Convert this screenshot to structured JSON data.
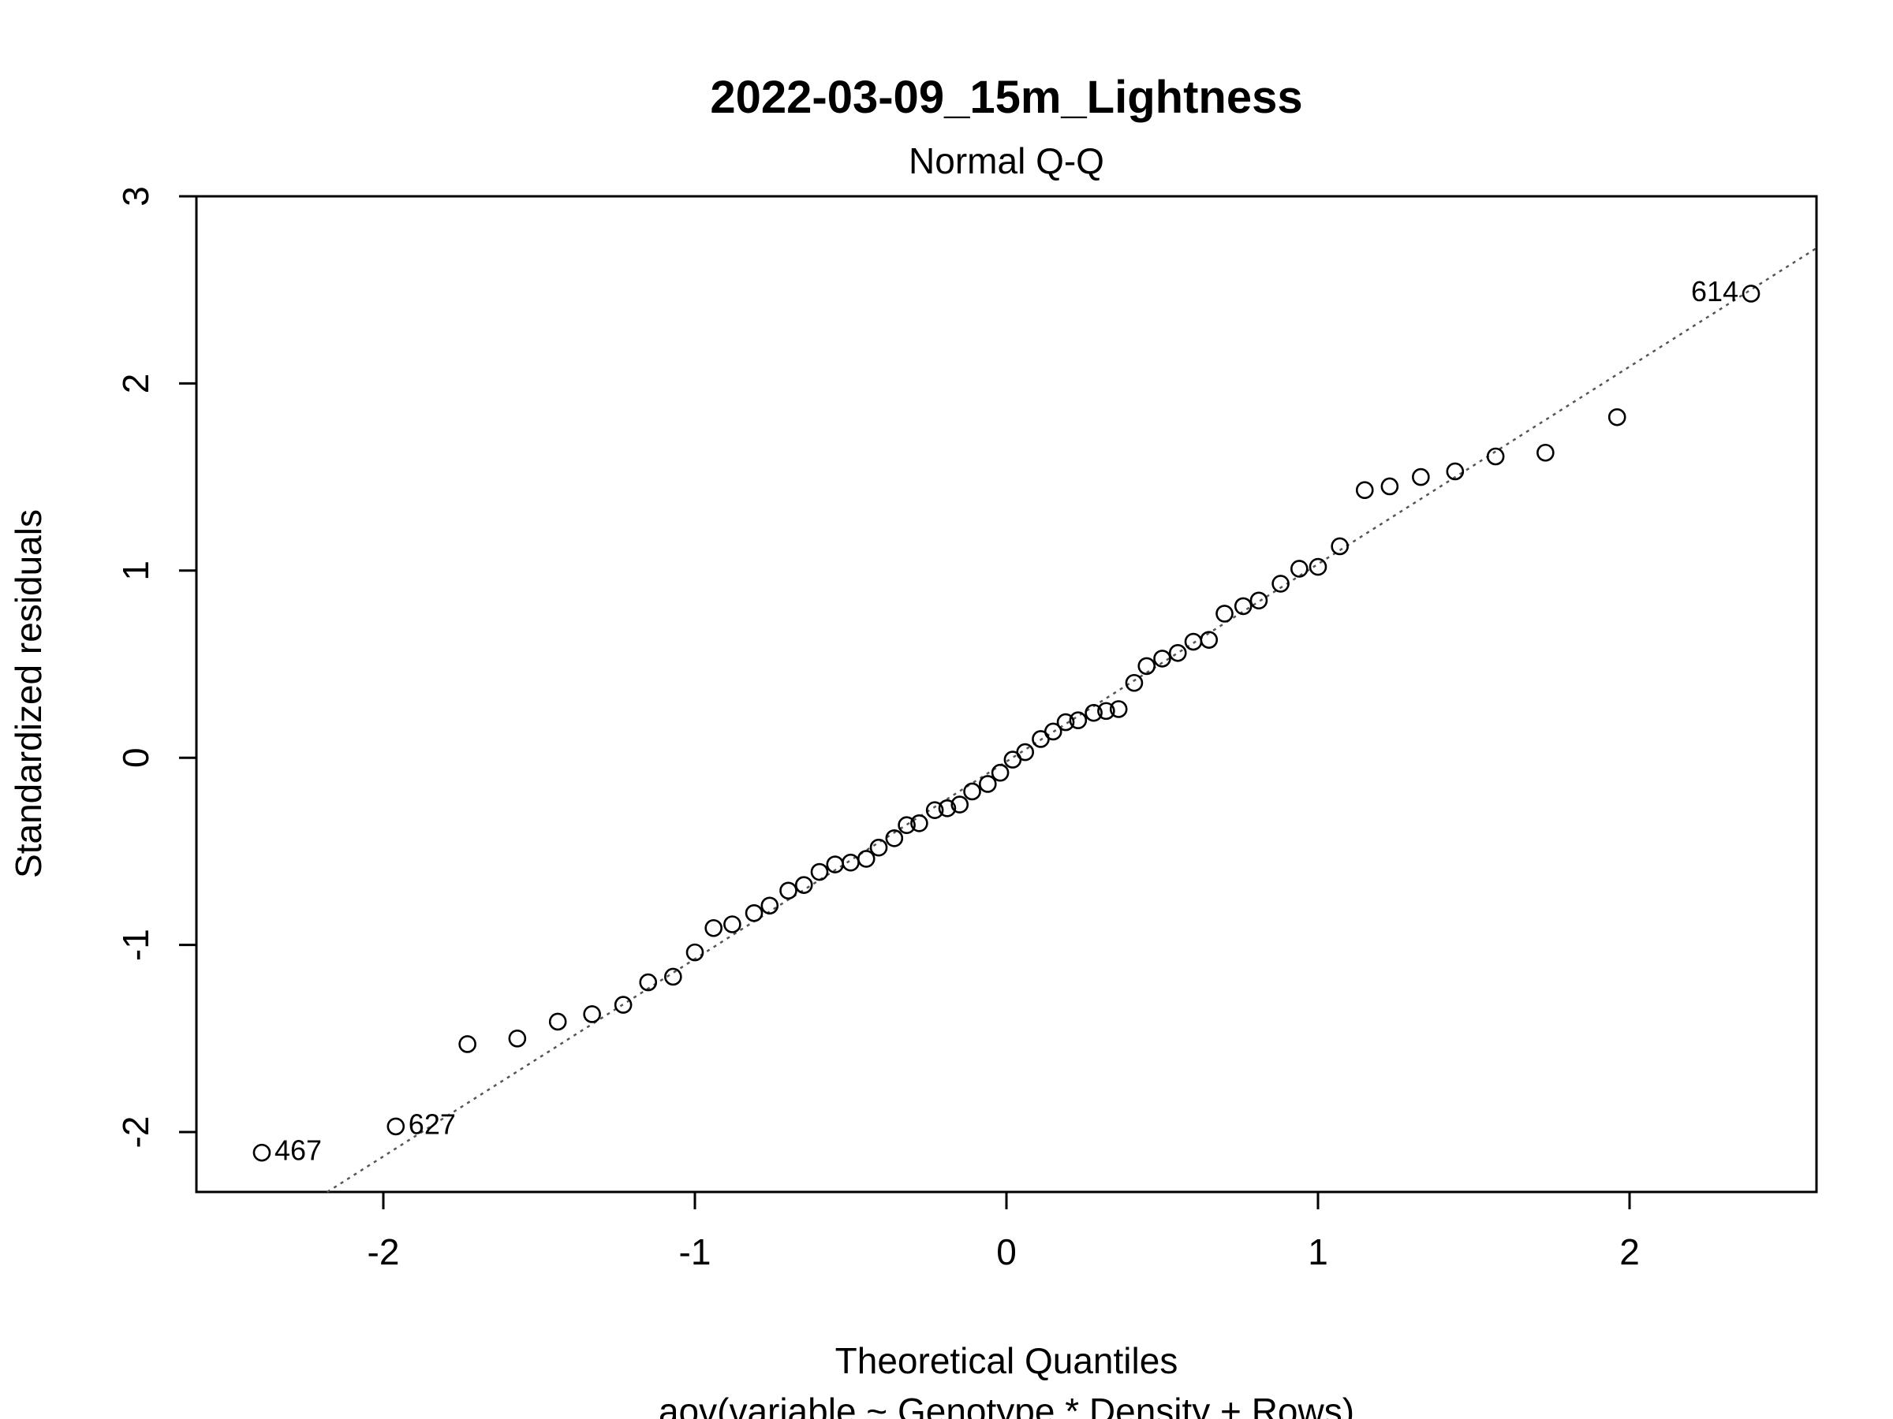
{
  "chart_data": {
    "type": "scatter",
    "title": "2022-03-09_15m_Lightness",
    "subtitle": "Normal Q-Q",
    "xlabel": "Theoretical Quantiles",
    "xlabel2": "aov(variable ~ Genotype * Density + Rows)",
    "ylabel": "Standardized residuals",
    "xlim": [
      -2.6,
      2.6
    ],
    "ylim": [
      -2.32,
      3.0
    ],
    "xticks": [
      -2,
      -1,
      0,
      1,
      2
    ],
    "xtick_labels": [
      "-2",
      "-1",
      "0",
      "1",
      "2"
    ],
    "yticks": [
      -2,
      -1,
      0,
      1,
      2,
      3
    ],
    "ytick_labels": [
      "-2",
      "-1",
      "0",
      "1",
      "2",
      "3"
    ],
    "grid": false,
    "reference_line": {
      "slope": 1.055,
      "intercept": -0.02,
      "style": "dotted",
      "color": "#555555"
    },
    "points": [
      [
        -2.39,
        -2.11
      ],
      [
        -1.96,
        -1.97
      ],
      [
        -1.73,
        -1.53
      ],
      [
        -1.57,
        -1.5
      ],
      [
        -1.44,
        -1.41
      ],
      [
        -1.33,
        -1.37
      ],
      [
        -1.23,
        -1.32
      ],
      [
        -1.15,
        -1.2
      ],
      [
        -1.07,
        -1.17
      ],
      [
        -1.0,
        -1.04
      ],
      [
        -0.94,
        -0.91
      ],
      [
        -0.88,
        -0.89
      ],
      [
        -0.81,
        -0.83
      ],
      [
        -0.76,
        -0.79
      ],
      [
        -0.7,
        -0.71
      ],
      [
        -0.65,
        -0.68
      ],
      [
        -0.6,
        -0.61
      ],
      [
        -0.55,
        -0.57
      ],
      [
        -0.5,
        -0.56
      ],
      [
        -0.45,
        -0.54
      ],
      [
        -0.41,
        -0.48
      ],
      [
        -0.36,
        -0.43
      ],
      [
        -0.32,
        -0.36
      ],
      [
        -0.28,
        -0.35
      ],
      [
        -0.23,
        -0.28
      ],
      [
        -0.19,
        -0.27
      ],
      [
        -0.15,
        -0.25
      ],
      [
        -0.11,
        -0.18
      ],
      [
        -0.06,
        -0.14
      ],
      [
        -0.02,
        -0.08
      ],
      [
        0.02,
        -0.01
      ],
      [
        0.06,
        0.03
      ],
      [
        0.11,
        0.1
      ],
      [
        0.15,
        0.14
      ],
      [
        0.19,
        0.19
      ],
      [
        0.23,
        0.2
      ],
      [
        0.28,
        0.24
      ],
      [
        0.32,
        0.25
      ],
      [
        0.36,
        0.26
      ],
      [
        0.41,
        0.4
      ],
      [
        0.45,
        0.49
      ],
      [
        0.5,
        0.53
      ],
      [
        0.55,
        0.56
      ],
      [
        0.6,
        0.62
      ],
      [
        0.65,
        0.63
      ],
      [
        0.7,
        0.77
      ],
      [
        0.76,
        0.81
      ],
      [
        0.81,
        0.84
      ],
      [
        0.88,
        0.93
      ],
      [
        0.94,
        1.01
      ],
      [
        1.0,
        1.02
      ],
      [
        1.07,
        1.13
      ],
      [
        1.15,
        1.43
      ],
      [
        1.23,
        1.45
      ],
      [
        1.33,
        1.5
      ],
      [
        1.44,
        1.53
      ],
      [
        1.57,
        1.61
      ],
      [
        1.73,
        1.63
      ],
      [
        1.96,
        1.82
      ],
      [
        2.39,
        2.48
      ]
    ],
    "annotations": [
      {
        "label": "467",
        "x": -2.39,
        "y": -2.11,
        "side": "right"
      },
      {
        "label": "627",
        "x": -1.96,
        "y": -1.97,
        "side": "right"
      },
      {
        "label": "614",
        "x": 2.39,
        "y": 2.48,
        "side": "left"
      }
    ]
  }
}
